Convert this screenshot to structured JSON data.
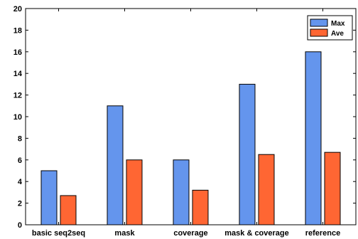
{
  "chart_data": {
    "type": "bar",
    "title": "",
    "xlabel": "",
    "ylabel": "",
    "categories": [
      "basic seq2seq",
      "mask",
      "coverage",
      "mask & coverage",
      "reference"
    ],
    "series": [
      {
        "name": "Max",
        "color": "#6495ED",
        "values": [
          5,
          11,
          6,
          13,
          16
        ]
      },
      {
        "name": "Ave",
        "color": "#FF6633",
        "values": [
          2.7,
          6,
          3.2,
          6.5,
          6.7
        ]
      }
    ],
    "ylim": [
      0,
      20
    ],
    "yticks": [
      "0",
      "2",
      "4",
      "6",
      "8",
      "10",
      "12",
      "14",
      "16",
      "18",
      "20"
    ],
    "grid": false,
    "legend_position": "top-right"
  }
}
